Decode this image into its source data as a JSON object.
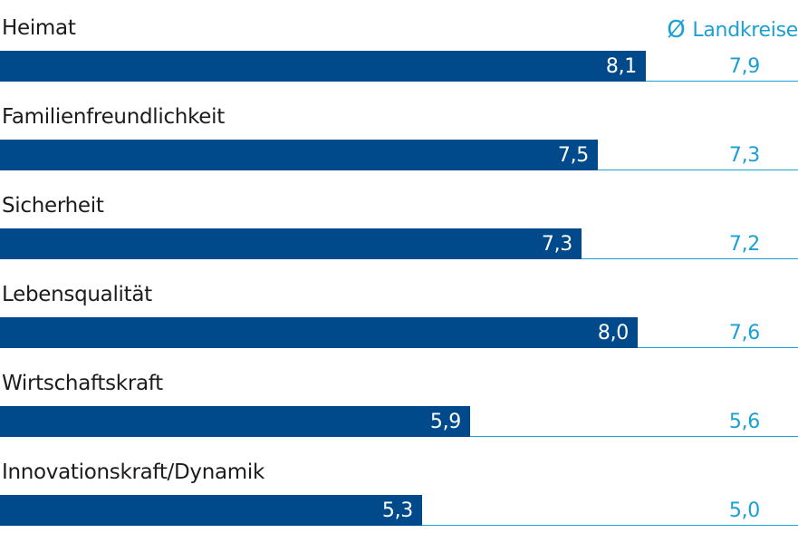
{
  "chart_data": {
    "type": "bar",
    "orientation": "horizontal",
    "legend": {
      "symbol": "Ø",
      "label": "Landkreise"
    },
    "categories": [
      "Heimat",
      "Familienfreundlichkeit",
      "Sicherheit",
      "Lebensqualität",
      "Wirtschaftskraft",
      "Innovationskraft/Dynamik"
    ],
    "values": [
      8.1,
      7.5,
      7.3,
      8.0,
      5.9,
      5.3
    ],
    "value_labels": [
      "8,1",
      "7,5",
      "7,3",
      "8,0",
      "5,9",
      "5,3"
    ],
    "averages": [
      7.9,
      7.3,
      7.2,
      7.6,
      5.6,
      5.0
    ],
    "average_labels": [
      "7,9",
      "7,3",
      "7,2",
      "7,6",
      "5,6",
      "5,0"
    ],
    "xlim": [
      0,
      10
    ],
    "colors": {
      "bar": "#004a8c",
      "average": "#1a9fd6"
    }
  }
}
